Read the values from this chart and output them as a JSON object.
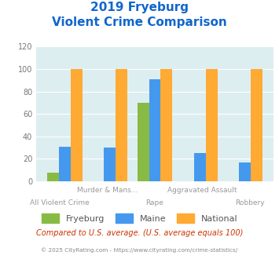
{
  "title_line1": "2019 Fryeburg",
  "title_line2": "Violent Crime Comparison",
  "categories": [
    "All Violent Crime",
    "Murder & Mans...",
    "Rape",
    "Aggravated Assault",
    "Robbery"
  ],
  "fryeburg": [
    8,
    0,
    70,
    0,
    0
  ],
  "maine": [
    31,
    30,
    91,
    25,
    17
  ],
  "national": [
    100,
    100,
    100,
    100,
    100
  ],
  "color_fryeburg": "#88bb44",
  "color_maine": "#4499ee",
  "color_national": "#ffaa33",
  "ylim": [
    0,
    120
  ],
  "yticks": [
    0,
    20,
    40,
    60,
    80,
    100,
    120
  ],
  "footer1": "Compared to U.S. average. (U.S. average equals 100)",
  "footer2": "© 2025 CityRating.com - https://www.cityrating.com/crime-statistics/",
  "fig_bg": "#ffffff",
  "plot_bg": "#ddeef0",
  "label_top": {
    "1": "Murder & Mans...",
    "3": "Aggravated Assault"
  },
  "label_bot": {
    "0": "All Violent Crime",
    "2": "Rape",
    "4": "Robbery"
  }
}
